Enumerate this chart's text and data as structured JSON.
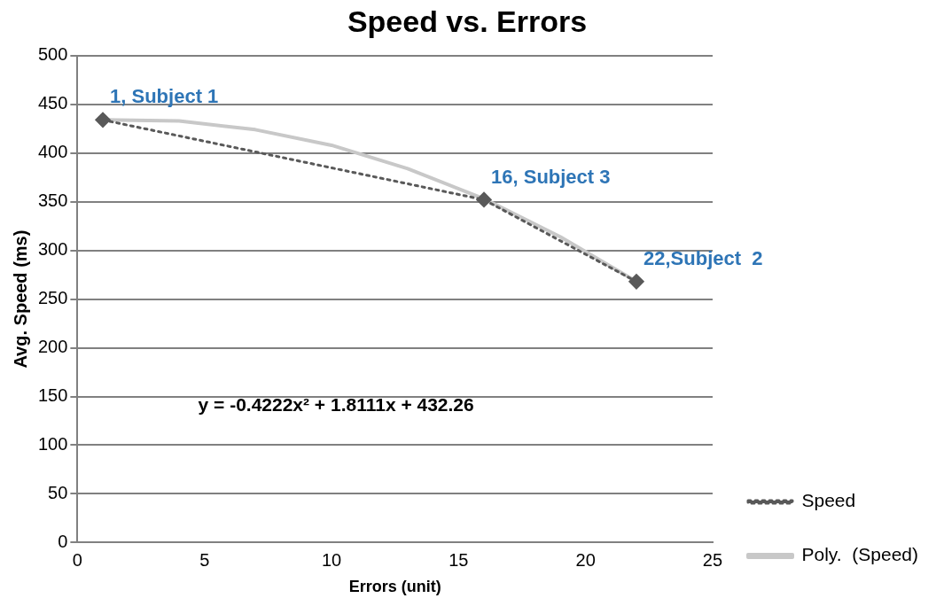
{
  "chart_data": {
    "type": "scatter",
    "title": "Speed vs. Errors",
    "xlabel": "Errors (unit)",
    "ylabel": "Avg. Speed (ms)",
    "xlim": [
      0,
      25
    ],
    "xticks": [
      0,
      5,
      10,
      15,
      20,
      25
    ],
    "ylim": [
      0,
      500
    ],
    "yticks": [
      0,
      50,
      100,
      150,
      200,
      250,
      300,
      350,
      400,
      450,
      500
    ],
    "grid": "y",
    "legend": "right",
    "annotations": [
      {
        "text": "1, Subject 1",
        "x": 1,
        "y": 434
      },
      {
        "text": "16, Subject 3",
        "x": 16,
        "y": 352
      },
      {
        "text": "22,Subject  2",
        "x": 22,
        "y": 268
      },
      "y = -0.4222x² + 1.8111x + 432.26"
    ],
    "series": [
      {
        "name": "Speed",
        "type": "line",
        "color": "#595959",
        "x": [
          1,
          16,
          22
        ],
        "values": [
          434,
          352,
          268
        ],
        "marker": "diamond",
        "line_style": "dotted"
      },
      {
        "name": "Poly.  (Speed)",
        "type": "line",
        "color": "#c8c8c8",
        "x": [
          1,
          4,
          7,
          10,
          13,
          16,
          19,
          22
        ],
        "values": [
          434,
          433,
          424,
          408,
          384,
          353,
          314,
          268
        ],
        "marker": "none",
        "line_style": "solid"
      }
    ]
  }
}
